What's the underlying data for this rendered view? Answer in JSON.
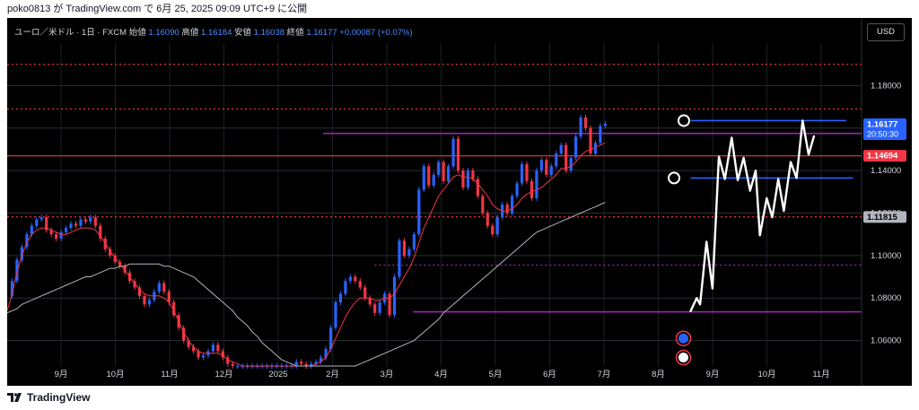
{
  "header": {
    "publish_line": "poko0813 が TradingView.com で 6月 25, 2025 09:09 UTC+9 に公開"
  },
  "legend": {
    "symbol": "ユーロ／米ドル · 1日 · FXCM",
    "open_label": "始値",
    "open": "1.16090",
    "high_label": "高値",
    "high": "1.16184",
    "low_label": "安値",
    "low": "1.16038",
    "close_label": "終値",
    "close": "1.16177",
    "change": "+0.00087 (+0.07%)"
  },
  "currency_button": "USD",
  "footer": {
    "logo_text": "TradingView"
  },
  "colors": {
    "background": "#000000",
    "up": "#2962ff",
    "down": "#f23645",
    "ma_fast": "#f23645",
    "ma_slow": "#b2b5be",
    "purple": "#9c27b0",
    "blue_line": "#2962ff"
  },
  "chart_data": {
    "type": "line",
    "title": "",
    "ylim": [
      1.048,
      1.2
    ],
    "y_ticks": [
      "1.06000",
      "1.08000",
      "1.10000",
      "1.12000",
      "1.14000",
      "1.16000",
      "1.18000"
    ],
    "x_ticks": [
      "9月",
      "10月",
      "11月",
      "12月",
      "2025",
      "2月",
      "3月",
      "4月",
      "5月",
      "6月",
      "7月",
      "8月",
      "9月",
      "10月",
      "11月"
    ],
    "price_labels": [
      {
        "value": 1.16177,
        "text": "1.16177",
        "sub": "20:50:30",
        "kind": "last"
      },
      {
        "value": 1.14694,
        "text": "1.14694",
        "kind": "red"
      },
      {
        "value": 1.11815,
        "text": "1.11815",
        "kind": "grey"
      }
    ],
    "horizontal_levels": [
      {
        "value": 1.19,
        "style": "red-dotted"
      },
      {
        "value": 1.169,
        "style": "red-dotted"
      },
      {
        "value": 1.1635,
        "style": "blue"
      },
      {
        "value": 1.1575,
        "style": "purple"
      },
      {
        "value": 1.14694,
        "style": "red"
      },
      {
        "value": 1.1365,
        "style": "blue"
      },
      {
        "value": 1.1182,
        "style": "red-dotted"
      },
      {
        "value": 1.0955,
        "style": "purple-dotted"
      },
      {
        "value": 1.0735,
        "style": "purple"
      }
    ],
    "series": [
      {
        "kind": "price",
        "values": [
          1.081,
          1.088,
          1.098,
          1.104,
          1.11,
          1.114,
          1.117,
          1.118,
          1.112,
          1.11,
          1.108,
          1.111,
          1.113,
          1.115,
          1.114,
          1.117,
          1.116,
          1.118,
          1.114,
          1.108,
          1.103,
          1.1,
          1.097,
          1.095,
          1.092,
          1.088,
          1.085,
          1.081,
          1.077,
          1.079,
          1.083,
          1.087,
          1.083,
          1.078,
          1.072,
          1.066,
          1.06,
          1.057,
          1.055,
          1.052,
          1.053,
          1.055,
          1.058,
          1.055,
          1.052,
          1.049,
          1.048,
          1.048,
          1.048,
          1.048,
          1.048,
          1.048,
          1.048,
          1.048,
          1.048,
          1.048,
          1.048,
          1.048,
          1.048,
          1.05,
          1.049,
          1.048,
          1.049,
          1.05,
          1.052,
          1.056,
          1.066,
          1.078,
          1.082,
          1.088,
          1.09,
          1.088,
          1.085,
          1.08,
          1.077,
          1.073,
          1.078,
          1.082,
          1.072,
          1.09,
          1.107,
          1.1,
          1.103,
          1.11,
          1.131,
          1.142,
          1.133,
          1.138,
          1.144,
          1.135,
          1.142,
          1.155,
          1.14,
          1.132,
          1.14,
          1.136,
          1.128,
          1.12,
          1.114,
          1.11,
          1.118,
          1.124,
          1.12,
          1.128,
          1.134,
          1.143,
          1.135,
          1.127,
          1.14,
          1.145,
          1.138,
          1.142,
          1.148,
          1.152,
          1.14,
          1.146,
          1.156,
          1.165,
          1.16,
          1.148,
          1.153,
          1.161,
          1.162
        ]
      },
      {
        "kind": "ma_fast",
        "values": [
          1.074,
          1.082,
          1.092,
          1.1,
          1.106,
          1.11,
          1.112,
          1.113,
          1.113,
          1.112,
          1.111,
          1.11,
          1.11,
          1.111,
          1.112,
          1.113,
          1.113,
          1.113,
          1.112,
          1.109,
          1.106,
          1.102,
          1.099,
          1.096,
          1.093,
          1.09,
          1.087,
          1.084,
          1.082,
          1.081,
          1.081,
          1.081,
          1.08,
          1.078,
          1.074,
          1.069,
          1.064,
          1.06,
          1.057,
          1.055,
          1.054,
          1.054,
          1.054,
          1.054,
          1.053,
          1.051,
          1.05,
          1.049,
          1.048,
          1.048,
          1.048,
          1.048,
          1.048,
          1.048,
          1.048,
          1.048,
          1.048,
          1.048,
          1.048,
          1.048,
          1.048,
          1.048,
          1.048,
          1.049,
          1.05,
          1.052,
          1.056,
          1.061,
          1.066,
          1.071,
          1.075,
          1.078,
          1.08,
          1.08,
          1.08,
          1.079,
          1.079,
          1.08,
          1.08,
          1.082,
          1.086,
          1.09,
          1.094,
          1.099,
          1.106,
          1.113,
          1.118,
          1.123,
          1.128,
          1.131,
          1.134,
          1.137,
          1.138,
          1.137,
          1.137,
          1.136,
          1.134,
          1.131,
          1.128,
          1.124,
          1.122,
          1.121,
          1.121,
          1.122,
          1.124,
          1.127,
          1.129,
          1.13,
          1.131,
          1.132,
          1.134,
          1.136,
          1.138,
          1.141,
          1.141,
          1.142,
          1.144,
          1.147,
          1.149,
          1.15,
          1.151,
          1.152,
          1.153
        ]
      },
      {
        "kind": "ma_slow",
        "values": [
          1.073,
          1.074,
          1.075,
          1.077,
          1.078,
          1.079,
          1.08,
          1.081,
          1.082,
          1.083,
          1.084,
          1.085,
          1.086,
          1.087,
          1.088,
          1.089,
          1.09,
          1.09,
          1.091,
          1.092,
          1.093,
          1.094,
          1.094,
          1.095,
          1.095,
          1.096,
          1.096,
          1.096,
          1.096,
          1.096,
          1.096,
          1.096,
          1.095,
          1.095,
          1.094,
          1.093,
          1.092,
          1.091,
          1.09,
          1.088,
          1.086,
          1.084,
          1.082,
          1.08,
          1.078,
          1.076,
          1.074,
          1.071,
          1.069,
          1.067,
          1.064,
          1.062,
          1.059,
          1.057,
          1.055,
          1.053,
          1.051,
          1.05,
          1.049,
          1.048,
          1.048,
          1.048,
          1.048,
          1.048,
          1.048,
          1.048,
          1.048,
          1.048,
          1.048,
          1.048,
          1.048,
          1.048,
          1.049,
          1.05,
          1.051,
          1.052,
          1.053,
          1.054,
          1.055,
          1.056,
          1.057,
          1.058,
          1.059,
          1.06,
          1.062,
          1.064,
          1.066,
          1.068,
          1.07,
          1.073,
          1.075,
          1.077,
          1.079,
          1.081,
          1.083,
          1.085,
          1.087,
          1.089,
          1.091,
          1.093,
          1.095,
          1.097,
          1.099,
          1.101,
          1.103,
          1.105,
          1.107,
          1.109,
          1.111,
          1.112,
          1.113,
          1.114,
          1.115,
          1.116,
          1.117,
          1.118,
          1.119,
          1.12,
          1.121,
          1.122,
          1.123,
          1.124,
          1.125
        ]
      }
    ],
    "zigzag": [
      [
        0.7995,
        1.0735
      ],
      [
        0.807,
        1.08
      ],
      [
        0.811,
        1.077
      ],
      [
        0.8185,
        1.1065
      ],
      [
        0.8255,
        1.0845
      ],
      [
        0.833,
        1.1465
      ],
      [
        0.84,
        1.136
      ],
      [
        0.848,
        1.1555
      ],
      [
        0.855,
        1.1355
      ],
      [
        0.862,
        1.146
      ],
      [
        0.8695,
        1.1305
      ],
      [
        0.876,
        1.14
      ],
      [
        0.881,
        1.1095
      ],
      [
        0.889,
        1.127
      ],
      [
        0.8955,
        1.118
      ],
      [
        0.9025,
        1.136
      ],
      [
        0.909,
        1.121
      ],
      [
        0.917,
        1.144
      ],
      [
        0.924,
        1.1365
      ],
      [
        0.931,
        1.1635
      ],
      [
        0.938,
        1.1475
      ],
      [
        0.9445,
        1.1565
      ]
    ],
    "markers": [
      {
        "xf": 0.792,
        "value": 1.1635,
        "kind": "circle"
      },
      {
        "xf": 0.7805,
        "value": 1.1365,
        "kind": "circle"
      }
    ],
    "event_icons": [
      {
        "xf": 0.7915,
        "value": 1.061,
        "kind": "globe-icon"
      },
      {
        "xf": 0.7915,
        "value": 1.052,
        "kind": "us-flag-icon"
      }
    ]
  }
}
